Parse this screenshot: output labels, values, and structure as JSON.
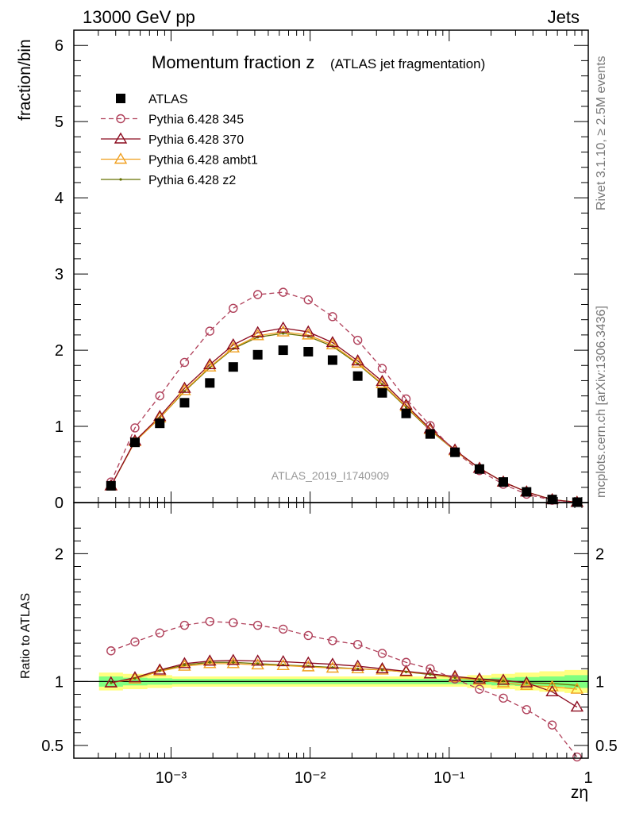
{
  "header": {
    "left": "13000 GeV pp",
    "right": "Jets"
  },
  "side_labels": {
    "rivet": "Rivet 3.1.10, ≥ 2.5M events",
    "mcplots": "mcplots.cern.ch [arXiv:1306.3436]"
  },
  "chart_data": [
    {
      "type": "scatter",
      "title_main": "Momentum fraction z",
      "title_sub": "(ATLAS jet fragmentation)",
      "watermark": "ATLAS_2019_I1740909",
      "ylabel": "fraction/bin",
      "xscale": "log",
      "xlim": [
        0.0002,
        1.0
      ],
      "ylim": [
        0,
        6.2
      ],
      "yticks": [
        "0",
        "1",
        "2",
        "3",
        "4",
        "5",
        "6"
      ],
      "x": [
        0.00037,
        0.00055,
        0.00083,
        0.00125,
        0.0019,
        0.0028,
        0.0042,
        0.0064,
        0.0097,
        0.0145,
        0.022,
        0.033,
        0.049,
        0.073,
        0.11,
        0.165,
        0.245,
        0.36,
        0.55,
        0.83
      ],
      "series": [
        {
          "name": "ATLAS",
          "style": "data",
          "color": "#000000",
          "values": [
            0.22,
            0.79,
            1.04,
            1.31,
            1.57,
            1.78,
            1.94,
            2.0,
            1.98,
            1.87,
            1.66,
            1.44,
            1.17,
            0.9,
            0.66,
            0.44,
            0.27,
            0.14,
            0.04,
            0.005
          ]
        },
        {
          "name": "Pythia 6.428 345",
          "style": "circle-dashed",
          "color": "#b0405a",
          "values": [
            0.27,
            0.98,
            1.4,
            1.84,
            2.25,
            2.55,
            2.73,
            2.76,
            2.66,
            2.44,
            2.13,
            1.76,
            1.36,
            1.01,
            0.67,
            0.42,
            0.24,
            0.11,
            0.03,
            0.002
          ]
        },
        {
          "name": "Pythia 6.428 370",
          "style": "triangle",
          "color": "#8b0a1e",
          "values": [
            0.22,
            0.81,
            1.13,
            1.5,
            1.81,
            2.07,
            2.23,
            2.29,
            2.24,
            2.1,
            1.86,
            1.59,
            1.28,
            0.97,
            0.69,
            0.45,
            0.27,
            0.14,
            0.037,
            0.004
          ]
        },
        {
          "name": "Pythia 6.428 ambt1",
          "style": "triangle",
          "color": "#f0a020",
          "values": [
            0.22,
            0.8,
            1.11,
            1.47,
            1.78,
            2.03,
            2.19,
            2.24,
            2.2,
            2.07,
            1.83,
            1.56,
            1.26,
            0.96,
            0.68,
            0.45,
            0.27,
            0.14,
            0.038,
            0.0047
          ]
        },
        {
          "name": "Pythia 6.428 z2",
          "style": "line-dot",
          "color": "#667000",
          "values": [
            0.22,
            0.8,
            1.11,
            1.46,
            1.77,
            2.02,
            2.17,
            2.22,
            2.18,
            2.05,
            1.82,
            1.55,
            1.25,
            0.95,
            0.68,
            0.45,
            0.27,
            0.14,
            0.039,
            0.005
          ]
        }
      ],
      "legend_position": "top-left"
    },
    {
      "type": "line",
      "ylabel": "Ratio to ATLAS",
      "xlabel": "zη",
      "xscale": "log",
      "xlim": [
        0.0002,
        1.0
      ],
      "ylim": [
        0.4,
        2.4
      ],
      "yticks": [
        "0.5",
        "1",
        "2"
      ],
      "xticks": [
        "10⁻³",
        "10⁻²",
        "10⁻¹",
        "1"
      ],
      "x": [
        0.00037,
        0.00055,
        0.00083,
        0.00125,
        0.0019,
        0.0028,
        0.0042,
        0.0064,
        0.0097,
        0.0145,
        0.022,
        0.033,
        0.049,
        0.073,
        0.11,
        0.165,
        0.245,
        0.36,
        0.55,
        0.83
      ],
      "band_inner": [
        0.04,
        0.03,
        0.025,
        0.02,
        0.02,
        0.02,
        0.02,
        0.02,
        0.02,
        0.02,
        0.02,
        0.02,
        0.02,
        0.02,
        0.02,
        0.025,
        0.03,
        0.035,
        0.04,
        0.05
      ],
      "band_outer": [
        0.07,
        0.06,
        0.05,
        0.04,
        0.04,
        0.04,
        0.04,
        0.04,
        0.04,
        0.04,
        0.04,
        0.04,
        0.04,
        0.04,
        0.04,
        0.05,
        0.06,
        0.07,
        0.08,
        0.09
      ],
      "series": [
        {
          "name": "Pythia 6.428 345",
          "color": "#b0405a",
          "values": [
            1.24,
            1.31,
            1.38,
            1.44,
            1.47,
            1.46,
            1.44,
            1.41,
            1.36,
            1.32,
            1.29,
            1.22,
            1.15,
            1.1,
            1.02,
            0.94,
            0.87,
            0.78,
            0.66,
            0.41
          ]
        },
        {
          "name": "Pythia 6.428 370",
          "color": "#8b0a1e",
          "values": [
            0.99,
            1.03,
            1.09,
            1.14,
            1.16,
            1.165,
            1.16,
            1.155,
            1.145,
            1.135,
            1.12,
            1.1,
            1.08,
            1.06,
            1.04,
            1.02,
            1.01,
            0.99,
            0.92,
            0.8
          ]
        },
        {
          "name": "Pythia 6.428 ambt1",
          "color": "#f0a020",
          "values": [
            0.99,
            1.02,
            1.08,
            1.12,
            1.14,
            1.14,
            1.13,
            1.125,
            1.115,
            1.105,
            1.1,
            1.09,
            1.075,
            1.06,
            1.03,
            1.01,
            0.99,
            0.97,
            0.96,
            0.94
          ]
        },
        {
          "name": "Pythia 6.428 z2",
          "color": "#667000",
          "values": [
            0.99,
            1.025,
            1.085,
            1.13,
            1.15,
            1.15,
            1.14,
            1.13,
            1.12,
            1.11,
            1.1,
            1.09,
            1.075,
            1.055,
            1.03,
            1.015,
            1.005,
            0.99,
            0.985,
            0.97
          ]
        }
      ]
    }
  ]
}
